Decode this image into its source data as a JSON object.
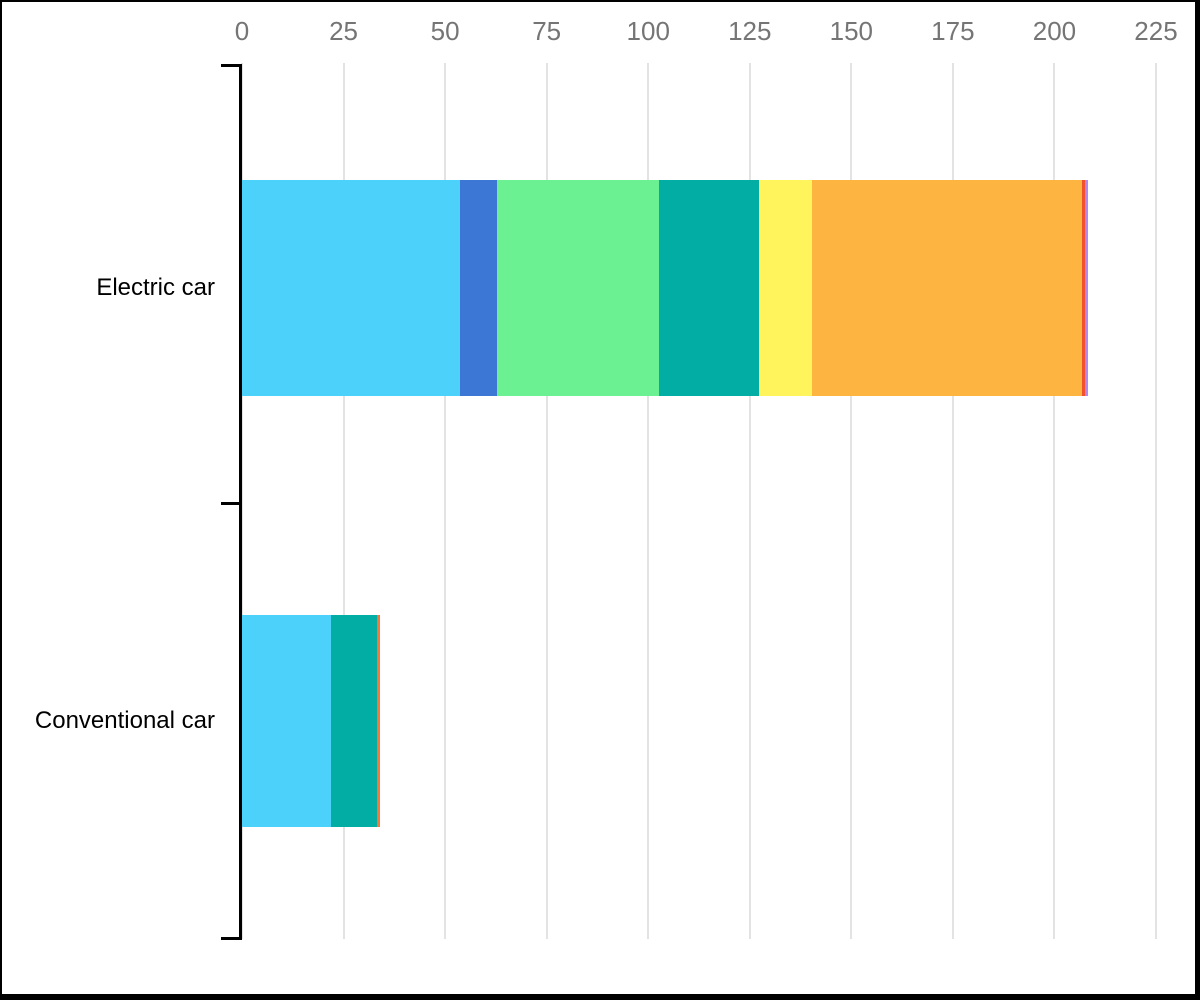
{
  "chart_data": {
    "type": "bar",
    "orientation": "horizontal",
    "stacked": true,
    "title": "",
    "legend_position": "none",
    "x_axis": {
      "position": "top",
      "range": [
        0,
        225
      ],
      "tick_interval": 25,
      "ticks": [
        "0",
        "25",
        "50",
        "75",
        "100",
        "125",
        "150",
        "175",
        "200",
        "225"
      ],
      "grid": true
    },
    "categories": [
      "Electric car",
      "Conventional car"
    ],
    "bars": [
      {
        "category": "Electric car",
        "total": 208.3,
        "segments": [
          {
            "name": "segment-cyan",
            "value": 53.7,
            "color": "#4cd1fb"
          },
          {
            "name": "segment-blue",
            "value": 9.1,
            "color": "#3d77d6"
          },
          {
            "name": "segment-green",
            "value": 39.8,
            "color": "#6bf092"
          },
          {
            "name": "segment-teal",
            "value": 24.6,
            "color": "#02ada4"
          },
          {
            "name": "segment-yellow",
            "value": 13.1,
            "color": "#fff45c"
          },
          {
            "name": "segment-orange",
            "value": 66.4,
            "color": "#fdb441"
          },
          {
            "name": "segment-vermilion",
            "value": 0.8,
            "color": "#f2512d"
          },
          {
            "name": "segment-purple",
            "value": 0.8,
            "color": "#b287f0"
          }
        ]
      },
      {
        "category": "Conventional car",
        "total": 33.9,
        "segments": [
          {
            "name": "segment-cyan",
            "value": 22.0,
            "color": "#4cd1fb"
          },
          {
            "name": "segment-teal",
            "value": 11.2,
            "color": "#02ada4"
          },
          {
            "name": "segment-orange-red",
            "value": 0.7,
            "color": "#f5793a"
          }
        ]
      }
    ],
    "colors": {
      "axis_text": "#757575",
      "category_text": "#000000",
      "gridline": "#e3e3e3",
      "axis_line": "#000000",
      "background": "#ffffff",
      "border": "#000000"
    }
  }
}
